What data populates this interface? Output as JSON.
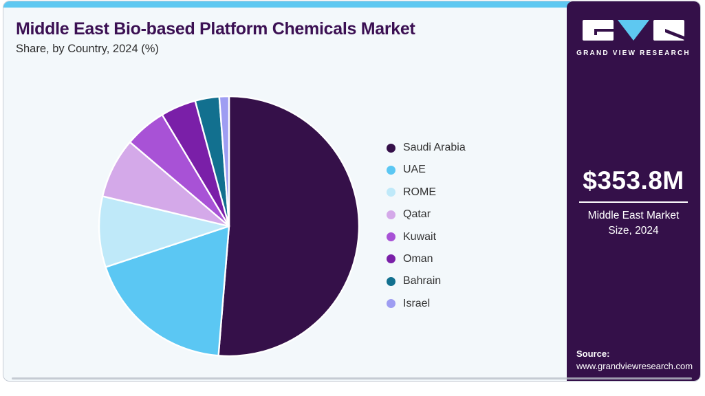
{
  "header": {
    "title": "Middle East Bio-based Platform Chemicals Market",
    "subtitle": "Share, by Country, 2024 (%)"
  },
  "chart_data": {
    "type": "pie",
    "title": "Middle East Bio-based Platform Chemicals Market Share, by Country, 2024 (%)",
    "unit": "%",
    "start_angle_deg": 0,
    "direction": "clockwise",
    "legend_position": "right",
    "slices": [
      {
        "label": "Saudi Arabia",
        "value": 51.3,
        "color": "#351049"
      },
      {
        "label": "UAE",
        "value": 18.6,
        "color": "#5bc7f3"
      },
      {
        "label": "ROME",
        "value": 8.8,
        "color": "#bfe9f9"
      },
      {
        "label": "Qatar",
        "value": 7.5,
        "color": "#d4a9e9"
      },
      {
        "label": "Kuwait",
        "value": 5.2,
        "color": "#a852d6"
      },
      {
        "label": "Oman",
        "value": 4.4,
        "color": "#7a1fa8"
      },
      {
        "label": "Bahrain",
        "value": 3.0,
        "color": "#12708f"
      },
      {
        "label": "Israel",
        "value": 1.2,
        "color": "#9e9df2"
      }
    ]
  },
  "sidebar": {
    "logo_text": "GRAND VIEW RESEARCH",
    "market_size_value": "$353.8M",
    "market_size_label": "Middle East Market Size, 2024",
    "source_label": "Source:",
    "source_url": "www.grandviewresearch.com"
  },
  "colors": {
    "card_bg": "#f3f8fb",
    "accent": "#5ec8f1",
    "sidebar_bg": "#341049",
    "title_color": "#3b1053"
  }
}
